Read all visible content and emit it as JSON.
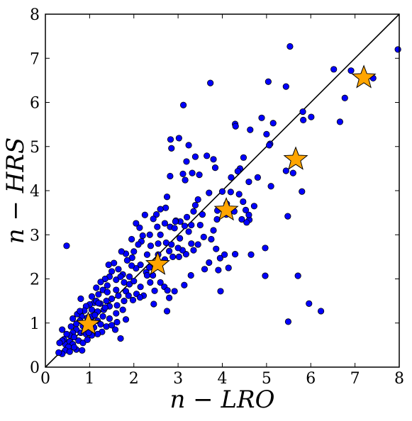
{
  "chart_data": {
    "type": "scatter",
    "title": "",
    "xlabel": "n − LRO",
    "ylabel": "n − HRS",
    "xlim": [
      0,
      8
    ],
    "ylim": [
      0,
      8
    ],
    "xticks": [
      0,
      1,
      2,
      3,
      4,
      5,
      6,
      7,
      8
    ],
    "yticks": [
      0,
      1,
      2,
      3,
      4,
      5,
      6,
      7,
      8
    ],
    "grid": false,
    "reference_line": {
      "from": [
        0,
        0
      ],
      "to": [
        8,
        8
      ]
    },
    "colors": {
      "points": "#0000ff",
      "stars": "#ffa500",
      "outline": "#000000",
      "diagonal": "#000000"
    },
    "series": [
      {
        "marker": "circle",
        "points": [
          [
            5.53,
            7.27
          ],
          [
            7.97,
            7.2
          ],
          [
            6.91,
            6.72
          ],
          [
            6.52,
            6.75
          ],
          [
            7.41,
            6.55
          ],
          [
            3.73,
            6.44
          ],
          [
            5.04,
            6.47
          ],
          [
            5.44,
            6.36
          ],
          [
            6.77,
            6.1
          ],
          [
            3.12,
            5.94
          ],
          [
            5.82,
            5.79
          ],
          [
            4.89,
            5.65
          ],
          [
            6.66,
            5.56
          ],
          [
            5.15,
            5.53
          ],
          [
            4.29,
            5.51
          ],
          [
            4.3,
            5.46
          ],
          [
            5.83,
            5.6
          ],
          [
            4.63,
            5.38
          ],
          [
            3.02,
            5.19
          ],
          [
            5.0,
            5.28
          ],
          [
            2.83,
            5.16
          ],
          [
            2.85,
            4.96
          ],
          [
            3.24,
            5.03
          ],
          [
            5.08,
            5.06
          ],
          [
            5.06,
            5.03
          ],
          [
            3.39,
            4.77
          ],
          [
            3.19,
            4.66
          ],
          [
            3.65,
            4.79
          ],
          [
            3.8,
            4.71
          ],
          [
            3.84,
            4.52
          ],
          [
            4.48,
            4.75
          ],
          [
            4.4,
            4.5
          ],
          [
            4.35,
            4.44
          ],
          [
            4.2,
            4.3
          ],
          [
            4.6,
            4.2
          ],
          [
            4.8,
            4.3
          ],
          [
            5.1,
            4.1
          ],
          [
            5.44,
            4.45
          ],
          [
            5.6,
            4.4
          ],
          [
            5.8,
            3.98
          ],
          [
            2.82,
            4.33
          ],
          [
            3.11,
            4.38
          ],
          [
            3.32,
            4.4
          ],
          [
            3.16,
            4.24
          ],
          [
            3.48,
            4.36
          ],
          [
            4.0,
            3.98
          ],
          [
            4.19,
            3.97
          ],
          [
            4.38,
            3.92
          ],
          [
            4.47,
            3.75
          ],
          [
            4.27,
            3.53
          ],
          [
            4.72,
            3.65
          ],
          [
            4.53,
            3.56
          ],
          [
            4.61,
            3.34
          ],
          [
            4.55,
            3.28
          ],
          [
            4.44,
            3.35
          ],
          [
            3.7,
            3.95
          ],
          [
            3.45,
            3.8
          ],
          [
            3.39,
            3.67
          ],
          [
            3.35,
            3.53
          ],
          [
            3.2,
            3.4
          ],
          [
            3.55,
            3.46
          ],
          [
            3.89,
            3.55
          ],
          [
            4.09,
            3.46
          ],
          [
            3.05,
            3.3
          ],
          [
            2.95,
            3.32
          ],
          [
            3.15,
            3.2
          ],
          [
            2.75,
            3.86
          ],
          [
            2.72,
            3.61
          ],
          [
            2.6,
            3.58
          ],
          [
            2.51,
            3.46
          ],
          [
            2.44,
            3.36
          ],
          [
            2.25,
            3.45
          ],
          [
            2.05,
            3.26
          ],
          [
            2.13,
            3.16
          ],
          [
            2.53,
            3.18
          ],
          [
            2.7,
            3.26
          ],
          [
            2.82,
            3.18
          ],
          [
            2.92,
            3.15
          ],
          [
            2.6,
            3.0
          ],
          [
            2.36,
            3.0
          ],
          [
            2.2,
            2.98
          ],
          [
            2.17,
            2.85
          ],
          [
            1.95,
            2.9
          ],
          [
            2.1,
            2.78
          ],
          [
            2.38,
            2.75
          ],
          [
            2.55,
            2.8
          ],
          [
            2.73,
            2.82
          ],
          [
            2.8,
            2.63
          ],
          [
            3.04,
            2.92
          ],
          [
            3.24,
            3.07
          ],
          [
            3.3,
            2.8
          ],
          [
            3.45,
            2.78
          ],
          [
            3.35,
            2.65
          ],
          [
            3.18,
            2.56
          ],
          [
            3.02,
            2.5
          ],
          [
            2.88,
            2.5
          ],
          [
            3.75,
            2.9
          ],
          [
            3.86,
            2.68
          ],
          [
            3.95,
            2.47
          ],
          [
            4.05,
            2.55
          ],
          [
            4.29,
            2.56
          ],
          [
            4.65,
            2.55
          ],
          [
            4.97,
            2.7
          ],
          [
            3.7,
            2.37
          ],
          [
            3.6,
            2.22
          ],
          [
            3.91,
            2.2
          ],
          [
            4.14,
            2.25
          ],
          [
            3.29,
            2.08
          ],
          [
            2.7,
            2.44
          ],
          [
            2.6,
            2.37
          ],
          [
            2.45,
            2.35
          ],
          [
            2.35,
            2.26
          ],
          [
            2.28,
            2.15
          ],
          [
            2.15,
            2.32
          ],
          [
            2.05,
            2.24
          ],
          [
            1.96,
            2.48
          ],
          [
            1.85,
            2.42
          ],
          [
            1.82,
            2.57
          ],
          [
            2.0,
            2.62
          ],
          [
            1.72,
            2.62
          ],
          [
            1.55,
            2.36
          ],
          [
            1.43,
            2.32
          ],
          [
            1.5,
            2.17
          ],
          [
            1.65,
            2.22
          ],
          [
            1.75,
            2.1
          ],
          [
            1.6,
            1.98
          ],
          [
            1.45,
            2.05
          ],
          [
            1.35,
            2.0
          ],
          [
            1.25,
            1.93
          ],
          [
            1.15,
            1.8
          ],
          [
            1.3,
            1.75
          ],
          [
            1.2,
            1.65
          ],
          [
            1.4,
            1.7
          ],
          [
            1.6,
            1.75
          ],
          [
            1.78,
            1.92
          ],
          [
            1.9,
            1.88
          ],
          [
            2.0,
            1.95
          ],
          [
            2.15,
            1.82
          ],
          [
            2.3,
            2.08
          ],
          [
            1.9,
            2.05
          ],
          [
            1.82,
            1.72
          ],
          [
            1.65,
            1.62
          ],
          [
            1.5,
            1.55
          ],
          [
            1.38,
            1.5
          ],
          [
            1.24,
            1.44
          ],
          [
            1.1,
            1.46
          ],
          [
            1.0,
            1.42
          ],
          [
            1.05,
            1.3
          ],
          [
            0.92,
            1.38
          ],
          [
            0.88,
            1.28
          ],
          [
            1.18,
            1.26
          ],
          [
            1.32,
            1.3
          ],
          [
            1.45,
            1.38
          ],
          [
            1.62,
            1.4
          ],
          [
            1.78,
            1.5
          ],
          [
            2.06,
            1.66
          ],
          [
            2.22,
            1.62
          ],
          [
            2.37,
            1.92
          ],
          [
            2.47,
            1.73
          ],
          [
            2.6,
            1.92
          ],
          [
            2.69,
            1.82
          ],
          [
            2.76,
            1.74
          ],
          [
            2.8,
            1.57
          ],
          [
            2.92,
            1.72
          ],
          [
            2.75,
            1.27
          ],
          [
            2.45,
            1.43
          ],
          [
            3.14,
            1.86
          ],
          [
            2.14,
            1.58
          ],
          [
            1.98,
            1.52
          ],
          [
            1.75,
            1.3
          ],
          [
            1.6,
            1.22
          ],
          [
            1.45,
            1.1
          ],
          [
            1.3,
            1.15
          ],
          [
            1.18,
            1.05
          ],
          [
            1.05,
            1.15
          ],
          [
            0.95,
            1.12
          ],
          [
            0.82,
            1.15
          ],
          [
            0.78,
            1.05
          ],
          [
            0.7,
            0.98
          ],
          [
            0.85,
            0.93
          ],
          [
            0.95,
            0.85
          ],
          [
            1.1,
            0.9
          ],
          [
            1.25,
            0.97
          ],
          [
            1.38,
            0.92
          ],
          [
            1.5,
            0.95
          ],
          [
            1.62,
            1.02
          ],
          [
            1.82,
            1.08
          ],
          [
            1.58,
            0.85
          ],
          [
            1.7,
            0.65
          ],
          [
            1.28,
            0.8
          ],
          [
            1.18,
            0.75
          ],
          [
            1.05,
            0.72
          ],
          [
            0.92,
            0.75
          ],
          [
            0.8,
            0.78
          ],
          [
            0.7,
            0.85
          ],
          [
            0.62,
            0.78
          ],
          [
            0.55,
            0.72
          ],
          [
            0.48,
            0.75
          ],
          [
            0.42,
            0.63
          ],
          [
            0.45,
            0.52
          ],
          [
            0.38,
            0.6
          ],
          [
            0.55,
            0.58
          ],
          [
            0.65,
            0.68
          ],
          [
            0.75,
            0.6
          ],
          [
            0.85,
            0.55
          ],
          [
            0.95,
            0.62
          ],
          [
            0.62,
            0.52
          ],
          [
            0.52,
            0.46
          ],
          [
            0.45,
            0.38
          ],
          [
            0.38,
            0.3
          ],
          [
            0.3,
            0.33
          ],
          [
            0.7,
            0.4
          ],
          [
            0.83,
            0.38
          ],
          [
            0.72,
            1.2
          ],
          [
            0.62,
            1.1
          ],
          [
            0.78,
            1.27
          ],
          [
            0.58,
            0.92
          ],
          [
            0.38,
            0.85
          ],
          [
            0.48,
            2.75
          ],
          [
            0.8,
            1.55
          ],
          [
            1.05,
            1.6
          ],
          [
            1.15,
            1.5
          ],
          [
            0.65,
            0.45
          ],
          [
            0.55,
            0.35
          ],
          [
            0.32,
            0.55
          ],
          [
            0.98,
            0.78
          ],
          [
            1.12,
            1.18
          ],
          [
            1.35,
            1.35
          ],
          [
            1.88,
            1.62
          ],
          [
            2.43,
            2.08
          ],
          [
            2.55,
            2.55
          ],
          [
            2.85,
            2.78
          ],
          [
            3.1,
            2.65
          ],
          [
            3.5,
            3.22
          ],
          [
            3.8,
            3.1
          ],
          [
            4.1,
            3.7
          ],
          [
            3.3,
            3.22
          ],
          [
            3.58,
            2.95
          ],
          [
            3.0,
            2.7
          ],
          [
            2.3,
            2.55
          ],
          [
            1.95,
            2.3
          ],
          [
            1.7,
            2.05
          ],
          [
            1.4,
            1.85
          ],
          [
            1.2,
            1.45
          ],
          [
            5.48,
            3.42
          ],
          [
            4.97,
            2.07
          ],
          [
            5.49,
            1.03
          ],
          [
            5.71,
            2.07
          ],
          [
            6.23,
            1.27
          ],
          [
            5.96,
            1.44
          ],
          [
            3.96,
            1.72
          ],
          [
            6.01,
            5.67
          ],
          [
            4.6,
            3.45
          ],
          [
            3.88,
            3.35
          ],
          [
            2.94,
            3.3
          ]
        ]
      },
      {
        "marker": "star",
        "points": [
          [
            0.97,
            0.97
          ],
          [
            2.54,
            2.33
          ],
          [
            4.09,
            3.56
          ],
          [
            5.66,
            4.71
          ],
          [
            7.2,
            6.56
          ]
        ]
      }
    ]
  }
}
